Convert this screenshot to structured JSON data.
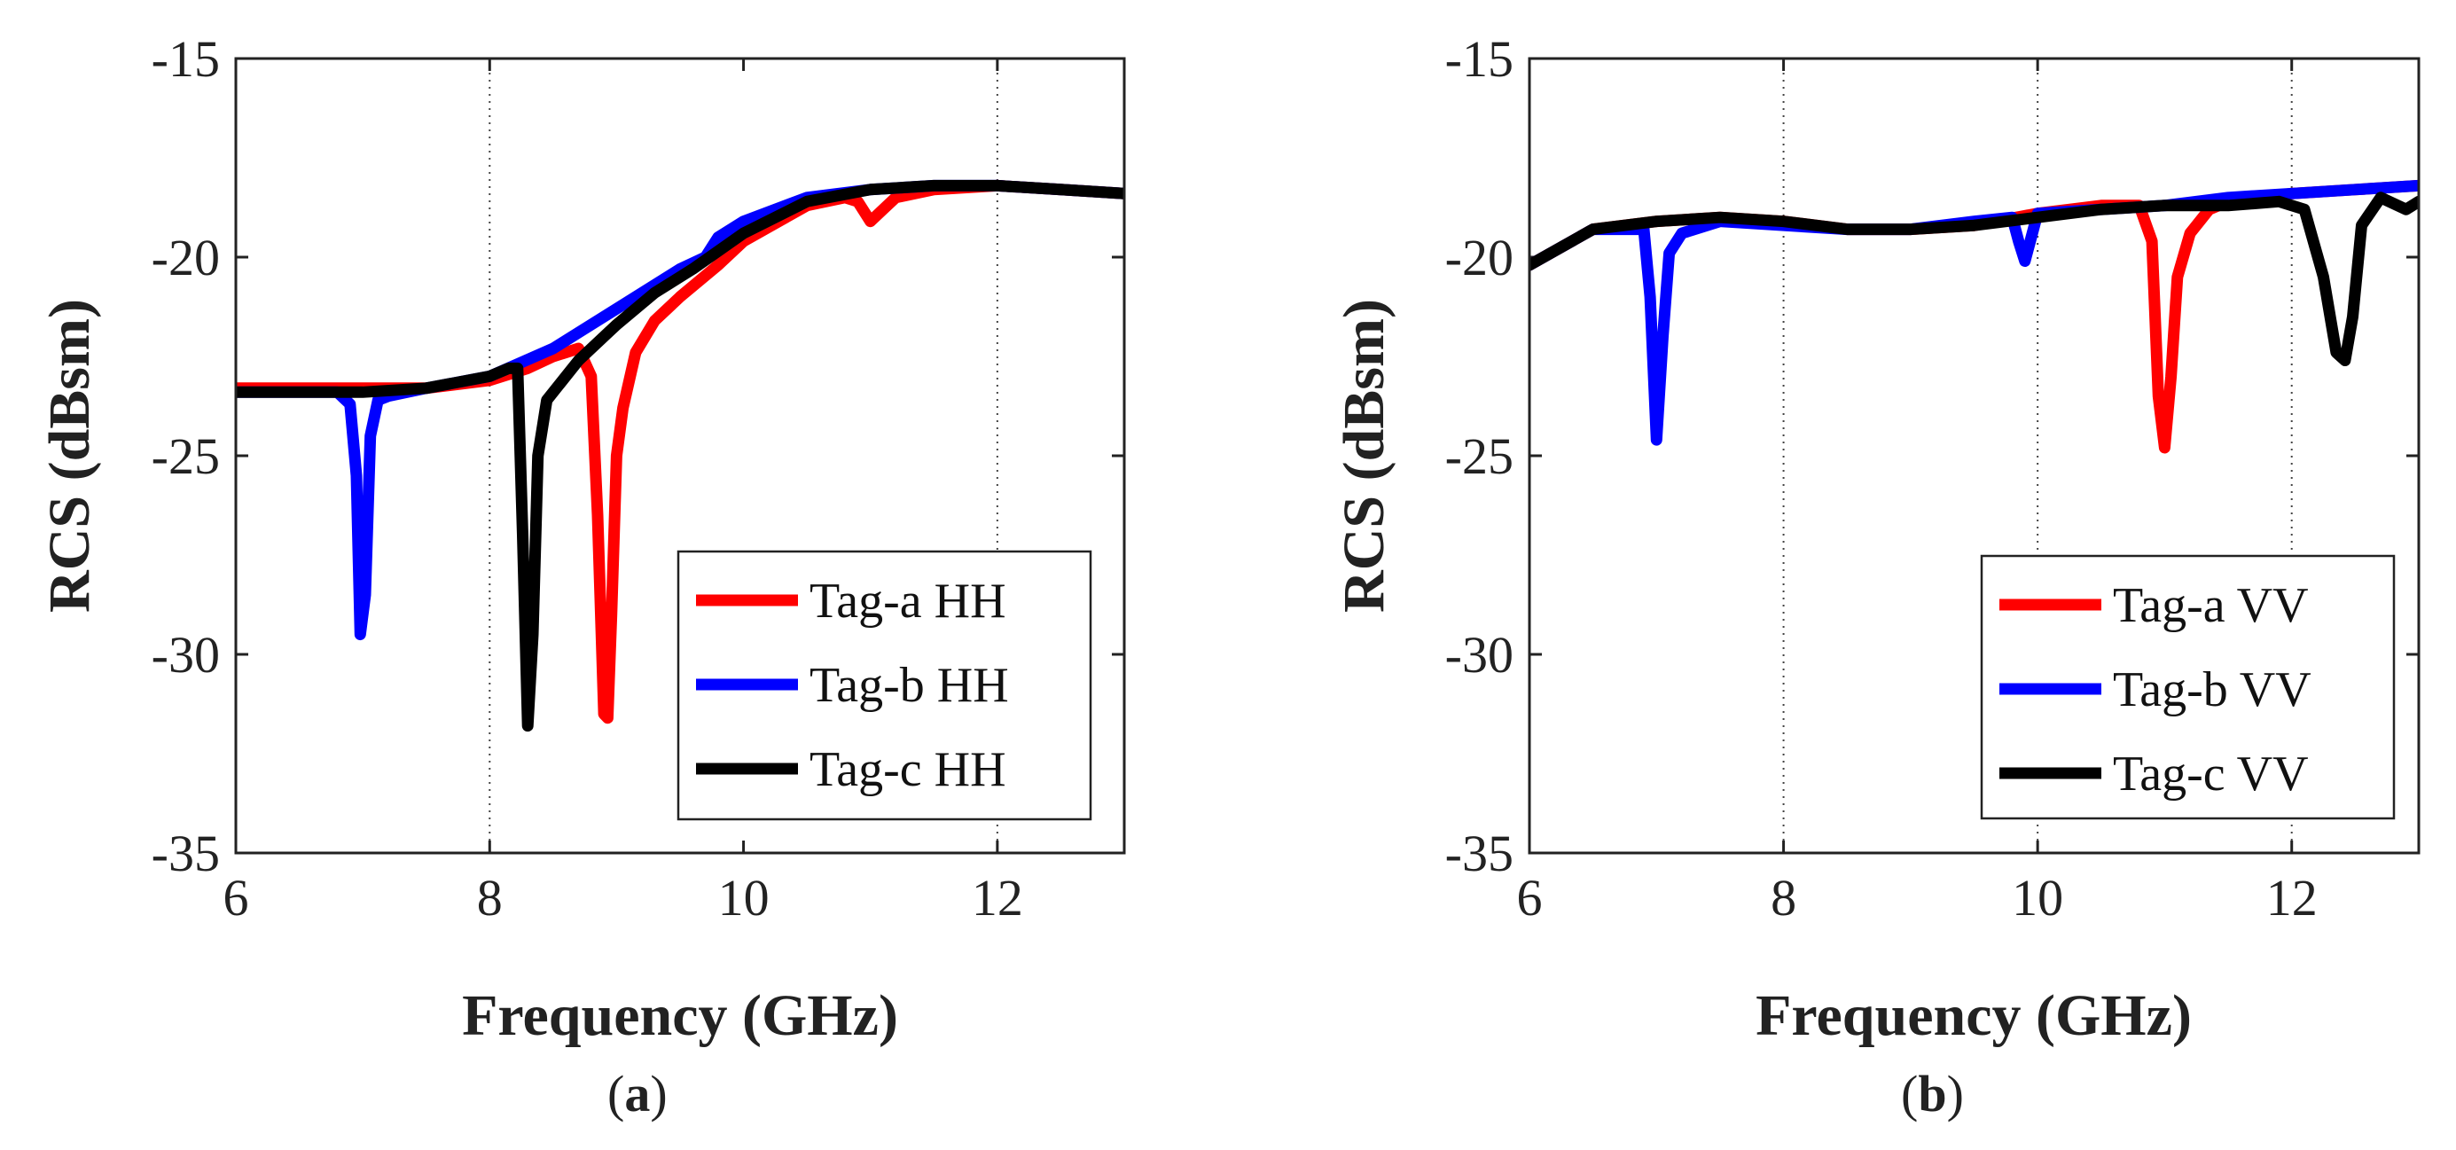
{
  "chart_data": [
    {
      "type": "line",
      "panel_label": "(a)",
      "panel_letter": "a",
      "xlabel": "Frequency (GHz)",
      "ylabel": "RCS (dBsm)",
      "xlim": [
        6,
        13
      ],
      "ylim": [
        -35,
        -15
      ],
      "xticks": [
        6,
        8,
        10,
        12
      ],
      "yticks": [
        -15,
        -20,
        -25,
        -30,
        -35
      ],
      "gridlines_x": [
        8,
        12
      ],
      "legend_location": "bottom-right",
      "series": [
        {
          "name": "Tag-a HH",
          "color": "#ff0000",
          "x": [
            6.0,
            6.5,
            7.0,
            7.5,
            8.0,
            8.3,
            8.5,
            8.7,
            8.8,
            8.85,
            8.9,
            8.93,
            8.96,
            9.0,
            9.05,
            9.15,
            9.3,
            9.5,
            9.8,
            10.0,
            10.5,
            10.8,
            10.9,
            11.0,
            11.1,
            11.2,
            11.5,
            12.0,
            12.5,
            13.0
          ],
          "y": [
            -23.3,
            -23.3,
            -23.3,
            -23.3,
            -23.1,
            -22.8,
            -22.5,
            -22.3,
            -23.0,
            -26.5,
            -31.5,
            -31.6,
            -29.0,
            -25.0,
            -23.8,
            -22.4,
            -21.6,
            -21.0,
            -20.2,
            -19.6,
            -18.7,
            -18.5,
            -18.6,
            -19.1,
            -18.8,
            -18.5,
            -18.3,
            -18.2,
            -18.3,
            -18.4
          ]
        },
        {
          "name": "Tag-b HH",
          "color": "#0000ff",
          "x": [
            6.0,
            6.5,
            6.8,
            6.9,
            6.95,
            6.98,
            7.02,
            7.06,
            7.12,
            7.2,
            7.5,
            8.0,
            8.5,
            9.0,
            9.5,
            9.7,
            9.8,
            10.0,
            10.5,
            11.0,
            11.5,
            12.0,
            12.5,
            13.0
          ],
          "y": [
            -23.4,
            -23.4,
            -23.4,
            -23.7,
            -25.5,
            -29.5,
            -28.5,
            -24.5,
            -23.6,
            -23.5,
            -23.3,
            -23.0,
            -22.3,
            -21.3,
            -20.3,
            -20.0,
            -19.5,
            -19.1,
            -18.5,
            -18.3,
            -18.2,
            -18.2,
            -18.3,
            -18.4
          ]
        },
        {
          "name": "Tag-c HH",
          "color": "#000000",
          "x": [
            6.0,
            6.5,
            7.0,
            7.5,
            8.0,
            8.15,
            8.22,
            8.26,
            8.3,
            8.34,
            8.38,
            8.45,
            8.55,
            8.7,
            9.0,
            9.3,
            9.6,
            10.0,
            10.5,
            11.0,
            11.5,
            12.0,
            12.5,
            13.0
          ],
          "y": [
            -23.4,
            -23.4,
            -23.4,
            -23.3,
            -23.0,
            -22.8,
            -22.8,
            -27.0,
            -31.8,
            -29.5,
            -25.0,
            -23.6,
            -23.2,
            -22.6,
            -21.7,
            -20.9,
            -20.3,
            -19.4,
            -18.6,
            -18.3,
            -18.2,
            -18.2,
            -18.3,
            -18.4
          ]
        }
      ]
    },
    {
      "type": "line",
      "panel_label": "(b)",
      "panel_letter": "b",
      "xlabel": "Frequency (GHz)",
      "ylabel": "RCS (dBsm)",
      "xlim": [
        6,
        13
      ],
      "ylim": [
        -35,
        -15
      ],
      "xticks": [
        6,
        8,
        10,
        12
      ],
      "yticks": [
        -15,
        -20,
        -25,
        -30,
        -35
      ],
      "gridlines_x": [
        8,
        10,
        12
      ],
      "legend_location": "bottom-right",
      "series": [
        {
          "name": "Tag-a VV",
          "color": "#ff0000",
          "x": [
            6.0,
            6.5,
            7.0,
            7.5,
            8.0,
            8.5,
            9.0,
            9.5,
            10.0,
            10.5,
            10.8,
            10.9,
            10.95,
            11.0,
            11.05,
            11.1,
            11.2,
            11.35,
            11.5,
            12.0,
            12.5,
            13.0
          ],
          "y": [
            -20.2,
            -19.3,
            -19.1,
            -19.0,
            -19.1,
            -19.3,
            -19.3,
            -19.2,
            -18.9,
            -18.7,
            -18.7,
            -19.6,
            -23.5,
            -24.8,
            -23.0,
            -20.5,
            -19.4,
            -18.8,
            -18.6,
            -18.4,
            -18.3,
            -18.2
          ]
        },
        {
          "name": "Tag-b VV",
          "color": "#0000ff",
          "x": [
            6.0,
            6.5,
            6.9,
            6.95,
            7.0,
            7.05,
            7.1,
            7.2,
            7.5,
            8.0,
            8.5,
            9.0,
            9.5,
            9.8,
            9.85,
            9.9,
            9.95,
            10.0,
            10.5,
            11.0,
            11.5,
            12.0,
            12.5,
            13.0
          ],
          "y": [
            -20.2,
            -19.3,
            -19.3,
            -21.0,
            -24.6,
            -22.0,
            -19.9,
            -19.4,
            -19.1,
            -19.2,
            -19.3,
            -19.3,
            -19.1,
            -19.0,
            -19.6,
            -20.1,
            -19.5,
            -18.9,
            -18.8,
            -18.7,
            -18.5,
            -18.4,
            -18.3,
            -18.2
          ]
        },
        {
          "name": "Tag-c VV",
          "color": "#000000",
          "x": [
            6.0,
            6.5,
            7.0,
            7.5,
            8.0,
            8.5,
            9.0,
            9.5,
            10.0,
            10.5,
            11.0,
            11.5,
            11.9,
            12.1,
            12.25,
            12.35,
            12.42,
            12.48,
            12.55,
            12.7,
            12.9,
            13.0
          ],
          "y": [
            -20.2,
            -19.3,
            -19.1,
            -19.0,
            -19.1,
            -19.3,
            -19.3,
            -19.2,
            -19.0,
            -18.8,
            -18.7,
            -18.7,
            -18.6,
            -18.8,
            -20.5,
            -22.4,
            -22.6,
            -21.5,
            -19.2,
            -18.5,
            -18.8,
            -18.6
          ]
        }
      ]
    }
  ]
}
